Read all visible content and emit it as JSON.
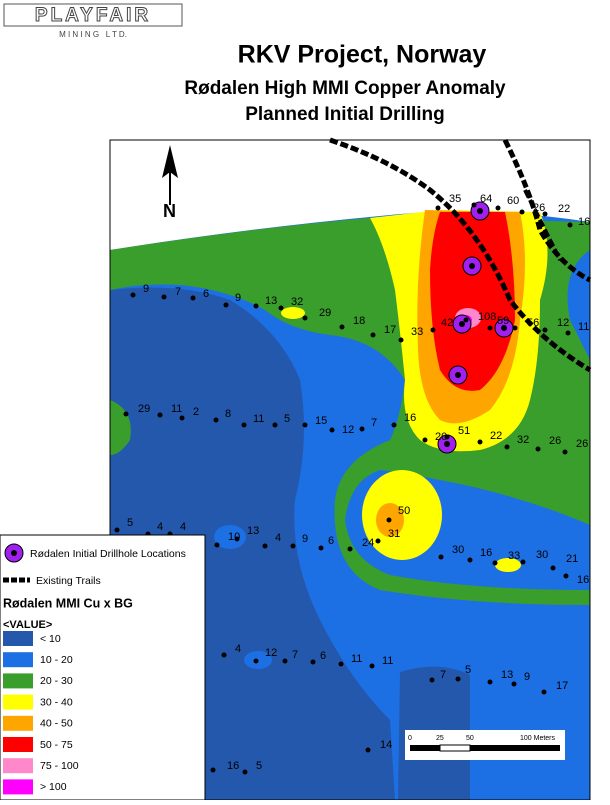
{
  "header": {
    "logo": "PLAYFAIR",
    "logo_sub": "M I N I N G   L T D.",
    "title": "RKV Project, Norway",
    "subtitle_lines": [
      "Rødalen High MMI Copper Anomaly",
      "Planned Initial Drilling"
    ]
  },
  "map": {
    "north_label": "N",
    "samples": [
      35,
      64,
      60,
      26,
      22,
      16,
      9,
      7,
      6,
      9,
      13,
      32,
      29,
      18,
      17,
      33,
      42,
      108,
      59,
      56,
      12,
      11,
      29,
      11,
      2,
      8,
      11,
      5,
      15,
      12,
      7,
      16,
      20,
      51,
      22,
      32,
      26,
      26,
      50,
      5,
      4,
      4,
      13,
      10,
      31,
      4,
      9,
      6,
      24,
      30,
      16,
      33,
      30,
      21,
      16,
      4,
      12,
      7,
      6,
      11,
      11,
      7,
      5,
      13,
      9,
      17,
      14,
      16,
      5
    ]
  },
  "legend": {
    "drillholes": "Rødalen Initial Drillhole Locations",
    "trails": "Existing Trails",
    "heading": "Rødalen MMI Cu x BG",
    "field": "<VALUE>",
    "classes": [
      {
        "label": "< 10",
        "color": "#2458ad"
      },
      {
        "label": "10 - 20",
        "color": "#1d6fe4"
      },
      {
        "label": "20 - 30",
        "color": "#3a9e2c"
      },
      {
        "label": "30 - 40",
        "color": "#ffff00"
      },
      {
        "label": "40 - 50",
        "color": "#ffa500"
      },
      {
        "label": "50 - 75",
        "color": "#ff0000"
      },
      {
        "label": "75 - 100",
        "color": "#ff88cc"
      },
      {
        "label": "> 100",
        "color": "#ff00ff"
      }
    ]
  },
  "scale": {
    "labels": [
      "0",
      "25",
      "50",
      "100 Meters"
    ]
  }
}
